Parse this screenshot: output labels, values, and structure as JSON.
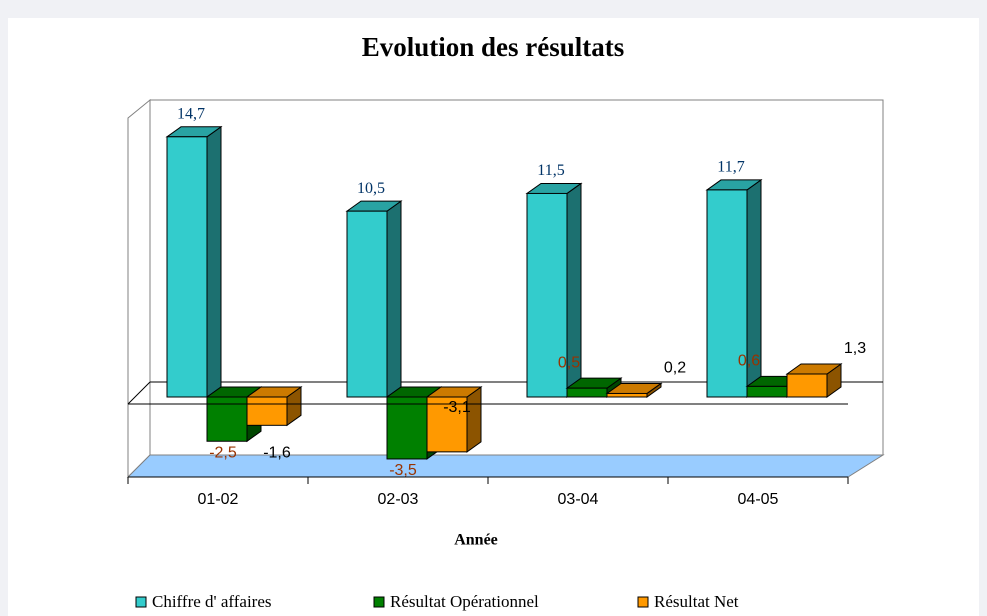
{
  "chart_data": {
    "type": "bar3d",
    "title": "Evolution des résultats",
    "x_label": "Année",
    "categories": [
      "01-02",
      "02-03",
      "03-04",
      "04-05"
    ],
    "ylim": [
      -4,
      16
    ],
    "legend": "bottom",
    "series": [
      {
        "name": "Chiffre d' affaires",
        "color": "#33cccc",
        "label_color": "#003366",
        "values": [
          14.7,
          10.5,
          11.5,
          11.7
        ],
        "value_labels": [
          "14,7",
          "10,5",
          "11,5",
          "11,7"
        ]
      },
      {
        "name": "Résultat Opérationnel",
        "color": "#008000",
        "label_color": "#993300",
        "values": [
          -2.5,
          -3.5,
          0.5,
          0.6
        ],
        "value_labels": [
          "-2,5",
          "-3,5",
          "0,5",
          "0,6"
        ]
      },
      {
        "name": "Résultat Net",
        "color": "#ff9900",
        "label_color": "#000000",
        "values": [
          -1.6,
          -3.1,
          0.2,
          1.3
        ],
        "value_labels": [
          "-1,6",
          "-3,1",
          "0,2",
          "1,3"
        ]
      }
    ]
  }
}
